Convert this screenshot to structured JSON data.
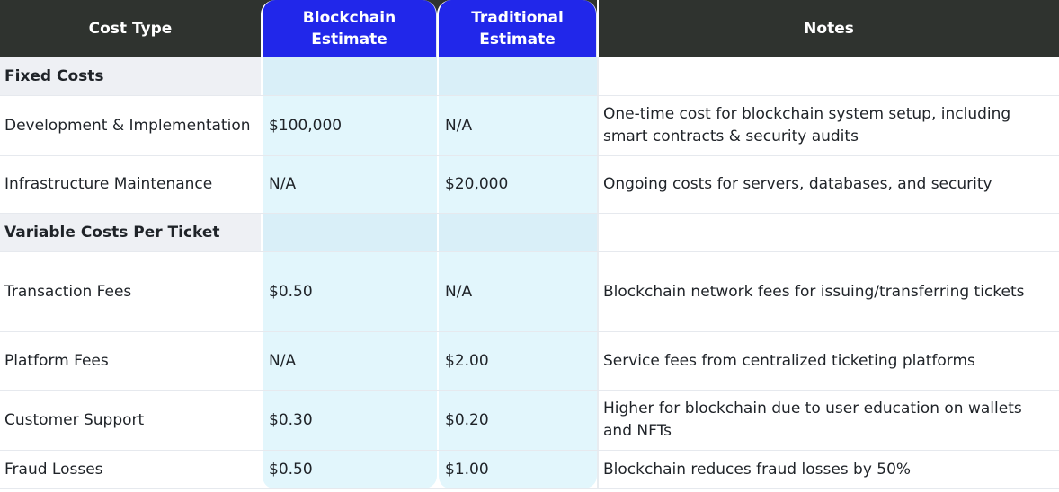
{
  "table": {
    "headers": {
      "cost_type": "Cost Type",
      "blockchain": "Blockchain\nEstimate",
      "traditional": "Traditional\nEstimate",
      "notes": "Notes"
    },
    "sections": [
      {
        "title": "Fixed Costs",
        "rows": [
          {
            "cost_type": "Development & Implementation",
            "blockchain": "$100,000",
            "traditional": "N/A",
            "notes": "One-time cost for blockchain system setup, including smart contracts & security audits"
          },
          {
            "cost_type": "Infrastructure Maintenance",
            "blockchain": "N/A",
            "traditional": "$20,000",
            "notes": "Ongoing costs for servers, databases, and security"
          }
        ]
      },
      {
        "title": "Variable Costs Per Ticket",
        "rows": [
          {
            "cost_type": "Transaction Fees",
            "blockchain": "$0.50",
            "traditional": "N/A",
            "notes": "Blockchain network fees for issuing/transferring tickets"
          },
          {
            "cost_type": "Platform Fees",
            "blockchain": "N/A",
            "traditional": "$2.00",
            "notes": "Service fees from centralized ticketing platforms"
          },
          {
            "cost_type": "Customer Support",
            "blockchain": "$0.30",
            "traditional": "$0.20",
            "notes": "Higher for blockchain due to user education on wallets and NFTs"
          },
          {
            "cost_type": "Fraud Losses",
            "blockchain": "$0.50",
            "traditional": "$1.00",
            "notes": "Blockchain reduces fraud losses by 50%"
          }
        ]
      }
    ]
  },
  "colors": {
    "header_bg": "#2f332f",
    "estimate_header_bg": "#2127ea",
    "estimate_column_bg": "#e2f6fc",
    "section_bg": "#eef0f4"
  }
}
